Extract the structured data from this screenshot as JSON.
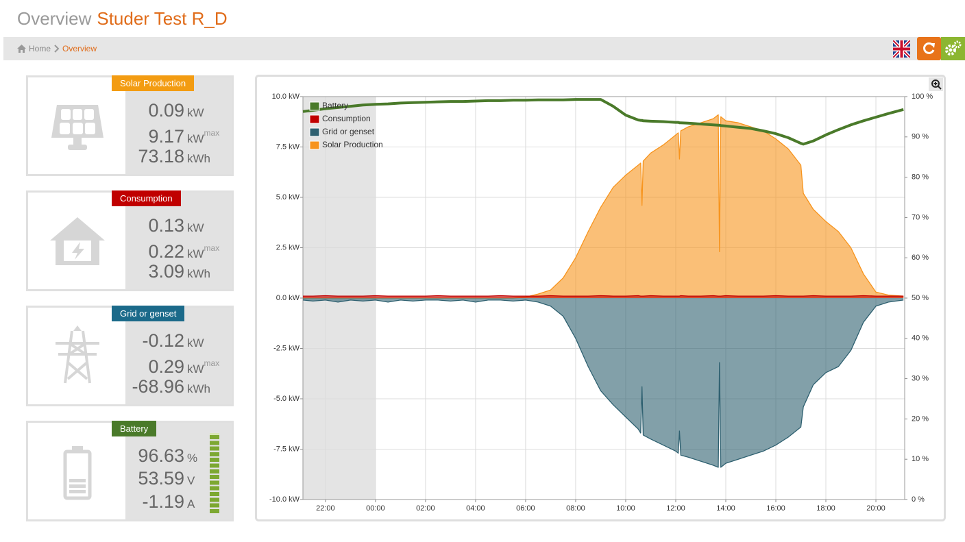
{
  "header": {
    "title": "Overview",
    "subtitle": "Studer Test R_D"
  },
  "breadcrumb": [
    "Home",
    "Overview"
  ],
  "cards": [
    {
      "label": "Solar Production",
      "color": "#f39c12",
      "lines": [
        {
          "value": 0.09,
          "unit": "kW"
        },
        {
          "value": 9.17,
          "unit": "kW",
          "note": "max"
        },
        {
          "value": 73.18,
          "unit": "kWh"
        }
      ]
    },
    {
      "label": "Consumption",
      "color": "#c00000",
      "lines": [
        {
          "value": 0.13,
          "unit": "kW"
        },
        {
          "value": 0.22,
          "unit": "kW",
          "note": "max"
        },
        {
          "value": 3.09,
          "unit": "kWh"
        }
      ]
    },
    {
      "label": "Grid or genset",
      "color": "#1b6a8a",
      "lines": [
        {
          "value": -0.12,
          "unit": "kW"
        },
        {
          "value": 0.29,
          "unit": "kW",
          "note": "max"
        },
        {
          "value": -68.96,
          "unit": "kWh"
        }
      ]
    },
    {
      "label": "Battery",
      "color": "#4a7a2a",
      "lines": [
        {
          "value": 96.63,
          "unit": "%"
        },
        {
          "value": 53.59,
          "unit": "V"
        },
        {
          "value": -1.19,
          "unit": "A"
        }
      ]
    }
  ],
  "chart_data": {
    "type": "area",
    "x": [
      21.1,
      21.5,
      22,
      22.5,
      23,
      23.5,
      24,
      24.5,
      25,
      25.5,
      26,
      26.5,
      27,
      27.5,
      28,
      28.5,
      29,
      29.5,
      30,
      30.5,
      31,
      31.5,
      32,
      32.5,
      33,
      33.5,
      34,
      34.5,
      34.6,
      34.65,
      34.7,
      35,
      35.5,
      36,
      36.1,
      36.15,
      36.2,
      36.5,
      37,
      37.5,
      37.7,
      37.75,
      37.8,
      38,
      38.5,
      39,
      39.5,
      40,
      40.5,
      41,
      41.1,
      41.5,
      42,
      42.5,
      43,
      43.5,
      44,
      44.5,
      45.1
    ],
    "xlim": [
      21.1,
      45.15
    ],
    "xticks": [
      {
        "value": 22,
        "label": "22:00"
      },
      {
        "value": 24,
        "label": "00:00"
      },
      {
        "value": 26,
        "label": "02:00"
      },
      {
        "value": 28,
        "label": "04:00"
      },
      {
        "value": 30,
        "label": "06:00"
      },
      {
        "value": 32,
        "label": "08:00"
      },
      {
        "value": 34,
        "label": "10:00"
      },
      {
        "value": 36,
        "label": "12:00"
      },
      {
        "value": 38,
        "label": "14:00"
      },
      {
        "value": 40,
        "label": "16:00"
      },
      {
        "value": 42,
        "label": "18:00"
      },
      {
        "value": 44,
        "label": "20:00"
      }
    ],
    "ylim": [
      -10,
      10
    ],
    "yticks": [
      {
        "value": -10,
        "label": "-10.0 kW"
      },
      {
        "value": -7.5,
        "label": "-7.5 kW"
      },
      {
        "value": -5,
        "label": "-5.0 kW"
      },
      {
        "value": -2.5,
        "label": "-2.5 kW"
      },
      {
        "value": 0,
        "label": "0.0 kW"
      },
      {
        "value": 2.5,
        "label": "2.5 kW"
      },
      {
        "value": 5,
        "label": "5.0 kW"
      },
      {
        "value": 7.5,
        "label": "7.5 kW"
      },
      {
        "value": 10,
        "label": "10.0 kW"
      }
    ],
    "y2lim": [
      0,
      100
    ],
    "y2ticks": [
      {
        "value": 0,
        "label": "0 %"
      },
      {
        "value": 10,
        "label": "10 %"
      },
      {
        "value": 20,
        "label": "20 %"
      },
      {
        "value": 30,
        "label": "30 %"
      },
      {
        "value": 40,
        "label": "40 %"
      },
      {
        "value": 50,
        "label": "50 %"
      },
      {
        "value": 60,
        "label": "60 %"
      },
      {
        "value": 70,
        "label": "70 %"
      },
      {
        "value": 80,
        "label": "80 %"
      },
      {
        "value": 90,
        "label": "90 %"
      },
      {
        "value": 100,
        "label": "100 %"
      }
    ],
    "plot_band": [
      21.1,
      24
    ],
    "grid": true,
    "legend": "top-left",
    "series": [
      {
        "name": "Battery",
        "type": "line",
        "axis": "y2",
        "color": "#4a7a2a",
        "values": [
          96.3,
          96.6,
          97.0,
          97.3,
          97.6,
          97.9,
          98.1,
          98.2,
          98.4,
          98.5,
          98.6,
          98.7,
          98.8,
          98.8,
          98.9,
          99.0,
          99.0,
          99.1,
          99.1,
          99.2,
          99.2,
          99.2,
          99.3,
          99.3,
          99.3,
          97.6,
          95.4,
          94.2,
          94.1,
          94.1,
          94.0,
          93.9,
          93.8,
          93.6,
          93.6,
          93.5,
          93.5,
          93.4,
          93.2,
          93.0,
          92.9,
          92.9,
          92.8,
          92.7,
          92.4,
          92.1,
          91.5,
          90.8,
          89.8,
          88.4,
          88.2,
          89.0,
          90.5,
          91.8,
          93.0,
          94.0,
          94.9,
          95.8,
          96.8
        ]
      },
      {
        "name": "Consumption",
        "type": "area",
        "color": "#c00000",
        "values": [
          0.1,
          0.1,
          0.12,
          0.1,
          0.1,
          0.1,
          0.12,
          0.1,
          0.1,
          0.1,
          0.1,
          0.12,
          0.1,
          0.1,
          0.1,
          0.1,
          0.12,
          0.1,
          0.1,
          0.1,
          0.12,
          0.1,
          0.1,
          0.1,
          0.12,
          0.1,
          0.1,
          0.12,
          0.1,
          0.1,
          0.1,
          0.12,
          0.1,
          0.1,
          0.1,
          0.1,
          0.12,
          0.1,
          0.1,
          0.12,
          0.1,
          0.1,
          0.1,
          0.12,
          0.1,
          0.1,
          0.1,
          0.12,
          0.1,
          0.1,
          0.1,
          0.12,
          0.1,
          0.1,
          0.1,
          0.12,
          0.1,
          0.1,
          0.1
        ]
      },
      {
        "name": "Grid or genset",
        "type": "area",
        "color": "#2e6070",
        "values": [
          -0.1,
          -0.15,
          -0.1,
          -0.2,
          -0.1,
          -0.15,
          -0.1,
          -0.2,
          -0.1,
          -0.15,
          -0.1,
          -0.1,
          -0.15,
          -0.1,
          -0.2,
          -0.1,
          -0.1,
          -0.15,
          -0.1,
          -0.2,
          -0.4,
          -0.9,
          -2.0,
          -3.4,
          -4.6,
          -5.3,
          -5.9,
          -6.5,
          -6.7,
          -4.4,
          -6.8,
          -7.0,
          -7.3,
          -7.6,
          -7.7,
          -6.6,
          -7.8,
          -7.9,
          -8.1,
          -8.3,
          -8.4,
          -3.2,
          -8.4,
          -8.2,
          -8.0,
          -7.8,
          -7.6,
          -7.3,
          -6.9,
          -6.4,
          -5.4,
          -4.3,
          -3.7,
          -3.4,
          -2.6,
          -1.2,
          -0.4,
          -0.2,
          -0.1
        ]
      },
      {
        "name": "Solar Production",
        "type": "area",
        "color": "#f7941d",
        "values": [
          0,
          0,
          0,
          0,
          0,
          0,
          0,
          0,
          0,
          0,
          0,
          0,
          0,
          0,
          0,
          0,
          0,
          0,
          0.05,
          0.2,
          0.4,
          1.0,
          2.0,
          3.3,
          4.5,
          5.5,
          6.1,
          6.6,
          6.7,
          4.6,
          6.8,
          7.2,
          7.6,
          8.1,
          8.2,
          6.9,
          8.3,
          8.5,
          8.7,
          8.9,
          9.1,
          2.3,
          9.0,
          8.8,
          8.7,
          8.5,
          8.3,
          7.9,
          7.4,
          6.6,
          5.2,
          4.4,
          3.8,
          3.3,
          2.5,
          1.2,
          0.3,
          0.15,
          0.1
        ]
      }
    ]
  }
}
